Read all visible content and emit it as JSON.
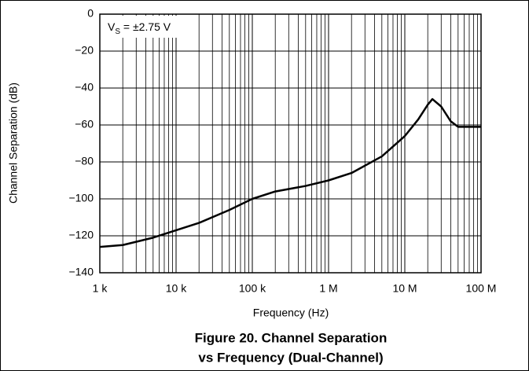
{
  "chart_data": {
    "type": "line",
    "annotation": {
      "main": "V",
      "subscript": "S",
      "rest": " = ±2.75 V"
    },
    "x_label": "Frequency (Hz)",
    "y_label": "Channel Separation (dB)",
    "caption": [
      "Figure 20. Channel Separation",
      "vs Frequency (Dual-Channel)"
    ],
    "x_scale": "log",
    "grid": true,
    "xlim": [
      1000,
      100000000
    ],
    "xticks": [
      {
        "value": 1000,
        "label": "1 k"
      },
      {
        "value": 10000,
        "label": "10 k"
      },
      {
        "value": 100000,
        "label": "100 k"
      },
      {
        "value": 1000000,
        "label": "1 M"
      },
      {
        "value": 10000000,
        "label": "10 M"
      },
      {
        "value": 100000000,
        "label": "100 M"
      }
    ],
    "ylim": [
      -140,
      0
    ],
    "yticks": [
      {
        "value": -140,
        "label": "−140"
      },
      {
        "value": -120,
        "label": "−120"
      },
      {
        "value": -100,
        "label": "−100"
      },
      {
        "value": -80,
        "label": "−80"
      },
      {
        "value": -60,
        "label": "−60"
      },
      {
        "value": -40,
        "label": "−40"
      },
      {
        "value": -20,
        "label": "−20"
      },
      0
    ],
    "series": [
      {
        "color": "#000000",
        "x": [
          1000,
          2000,
          5000,
          10000,
          20000,
          50000,
          100000,
          200000,
          500000,
          1000000,
          2000000,
          5000000,
          10000000,
          15000000,
          20000000,
          23000000,
          30000000,
          40000000,
          50000000,
          100000000
        ],
        "values": [
          -126,
          -125,
          -121,
          -117,
          -113,
          -106,
          -100,
          -96,
          -93,
          -90,
          -86,
          -77,
          -66,
          -57,
          -49,
          -46,
          -50,
          -58,
          -61,
          -61
        ]
      }
    ]
  }
}
